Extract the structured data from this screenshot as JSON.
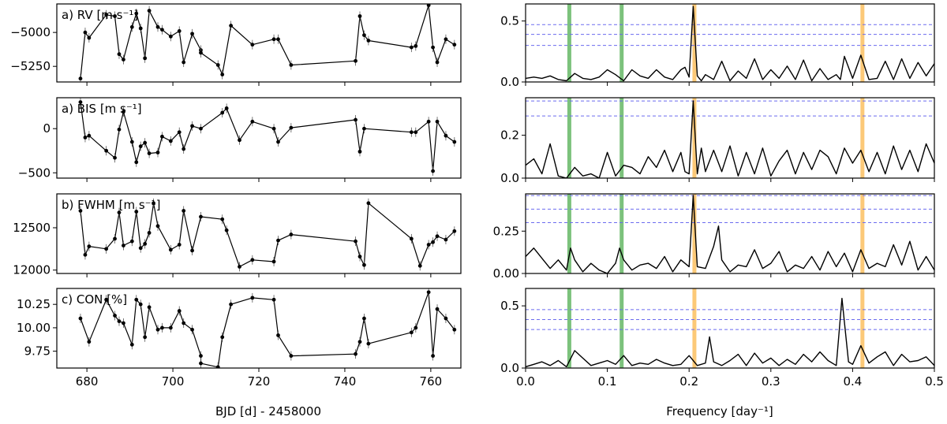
{
  "figure": {
    "left_xlabel": "BJD [d] - 2458000",
    "right_xlabel": "Frequency [day⁻¹]"
  },
  "chart_data": [
    {
      "type": "line",
      "panel": "left",
      "title": "a) RV [m s⁻¹]",
      "xlim": [
        673,
        767
      ],
      "ylim": [
        -5365,
        -4790
      ],
      "xticks": [
        680,
        700,
        720,
        740,
        760
      ],
      "yticks": [
        -5250,
        -5000
      ],
      "ytick_labels": [
        "−5250",
        "−5000"
      ],
      "x": [
        678.5,
        679.6,
        680.5,
        684.5,
        686.5,
        687.5,
        688.5,
        690.5,
        691.5,
        692.5,
        693.5,
        694.5,
        696.5,
        697.5,
        699.5,
        701.5,
        702.5,
        704.5,
        706.5,
        706.5,
        710.5,
        711.5,
        713.5,
        718.5,
        723.5,
        724.5,
        727.5,
        742.5,
        743.5,
        744.5,
        745.5,
        755.5,
        756.5,
        759.5,
        760.5,
        761.5,
        763.5,
        765.5
      ],
      "values": [
        -5340,
        -5000,
        -5040,
        -4870,
        -4880,
        -5160,
        -5200,
        -4960,
        -4860,
        -4970,
        -5190,
        -4840,
        -4960,
        -4980,
        -5030,
        -4990,
        -5220,
        -5010,
        -5130,
        -5150,
        -5240,
        -5310,
        -4950,
        -5090,
        -5050,
        -5050,
        -5240,
        -5210,
        -4880,
        -5020,
        -5060,
        -5110,
        -5100,
        -4800,
        -5110,
        -5220,
        -5050,
        -5090
      ]
    },
    {
      "type": "line",
      "panel": "left",
      "title": "a) BIS [m s⁻¹]",
      "xlim": [
        673,
        767
      ],
      "ylim": [
        -560,
        350
      ],
      "xticks": [
        680,
        700,
        720,
        740,
        760
      ],
      "yticks": [
        -500,
        0
      ],
      "ytick_labels": [
        "−500",
        "0"
      ],
      "x": [
        678.5,
        679.6,
        680.5,
        684.5,
        686.5,
        687.5,
        688.5,
        690.5,
        691.5,
        692.5,
        693.5,
        694.5,
        696.5,
        697.5,
        699.5,
        701.5,
        702.5,
        704.5,
        706.5,
        711.5,
        712.5,
        715.5,
        718.5,
        723.5,
        724.5,
        727.5,
        742.5,
        743.5,
        744.5,
        755.5,
        756.5,
        759.5,
        760.5,
        761.5,
        763.5,
        765.5
      ],
      "values": [
        300,
        -100,
        -80,
        -250,
        -330,
        -10,
        190,
        -150,
        -380,
        -200,
        -160,
        -280,
        -270,
        -90,
        -140,
        -40,
        -230,
        30,
        0,
        180,
        230,
        -130,
        80,
        0,
        -150,
        10,
        100,
        -260,
        0,
        -40,
        -40,
        80,
        -480,
        80,
        -80,
        -150
      ]
    },
    {
      "type": "line",
      "panel": "left",
      "title": "b) FWHM [m s⁻¹]",
      "xlim": [
        673,
        767
      ],
      "ylim": [
        11960,
        12900
      ],
      "xticks": [
        680,
        700,
        720,
        740,
        760
      ],
      "yticks": [
        12000,
        12500
      ],
      "ytick_labels": [
        "12000",
        "12500"
      ],
      "x": [
        678.5,
        679.6,
        680.5,
        684.5,
        686.5,
        687.5,
        688.5,
        690.5,
        691.5,
        692.5,
        693.5,
        694.5,
        695.5,
        696.5,
        699.5,
        701.5,
        702.5,
        704.5,
        706.5,
        711.5,
        712.5,
        715.5,
        718.5,
        723.5,
        724.5,
        727.5,
        742.5,
        743.5,
        744.5,
        745.5,
        755.5,
        757.5,
        759.5,
        760.5,
        761.5,
        763.5,
        765.5
      ],
      "values": [
        12700,
        12180,
        12280,
        12250,
        12370,
        12680,
        12290,
        12340,
        12690,
        12260,
        12310,
        12440,
        12790,
        12520,
        12240,
        12300,
        12700,
        12230,
        12630,
        12600,
        12470,
        12040,
        12120,
        12100,
        12350,
        12420,
        12340,
        12160,
        12060,
        12790,
        12370,
        12050,
        12300,
        12330,
        12400,
        12360,
        12460
      ]
    },
    {
      "type": "line",
      "panel": "left",
      "title": "c) CON [%]",
      "xlim": [
        673,
        767
      ],
      "ylim": [
        9.57,
        10.42
      ],
      "xticks": [
        680,
        700,
        720,
        740,
        760
      ],
      "yticks": [
        9.75,
        10.0,
        10.25
      ],
      "ytick_labels": [
        "9.75",
        "10.00",
        "10.25"
      ],
      "x": [
        678.5,
        680.5,
        684.5,
        686.5,
        687.5,
        688.5,
        690.5,
        691.5,
        692.5,
        693.5,
        694.5,
        696.5,
        697.5,
        699.5,
        701.5,
        702.5,
        704.5,
        706.5,
        706.5,
        710.5,
        711.5,
        713.5,
        718.5,
        723.5,
        724.5,
        727.5,
        742.5,
        743.5,
        744.5,
        745.5,
        755.5,
        756.5,
        759.5,
        760.5,
        761.5,
        763.5,
        765.5
      ],
      "values": [
        10.1,
        9.85,
        10.3,
        10.13,
        10.07,
        10.05,
        9.82,
        10.3,
        10.25,
        9.9,
        10.22,
        9.98,
        10.0,
        10.0,
        10.18,
        10.05,
        9.98,
        9.7,
        9.62,
        9.58,
        9.9,
        10.25,
        10.32,
        10.3,
        9.92,
        9.7,
        9.72,
        9.85,
        10.1,
        9.83,
        9.95,
        10.0,
        10.38,
        9.7,
        10.2,
        10.1,
        9.98
      ]
    },
    {
      "type": "line",
      "panel": "right",
      "xlim": [
        0,
        0.5
      ],
      "ylim": [
        0,
        0.64
      ],
      "xticks": [
        0.0,
        0.1,
        0.2,
        0.3,
        0.4,
        0.5
      ],
      "yticks": [
        0.0,
        0.5
      ],
      "ytick_labels": [
        "0.0",
        "0.5"
      ],
      "fap_levels": [
        0.3,
        0.39,
        0.47
      ],
      "freq_lines_green": [
        0.0535,
        0.1175
      ],
      "freq_lines_orange": [
        0.2065,
        0.412
      ],
      "x": [
        0.0,
        0.01,
        0.02,
        0.03,
        0.04,
        0.05,
        0.06,
        0.07,
        0.08,
        0.09,
        0.1,
        0.11,
        0.12,
        0.13,
        0.14,
        0.15,
        0.16,
        0.17,
        0.18,
        0.19,
        0.195,
        0.2,
        0.205,
        0.21,
        0.215,
        0.22,
        0.23,
        0.24,
        0.25,
        0.26,
        0.27,
        0.28,
        0.29,
        0.3,
        0.31,
        0.32,
        0.33,
        0.34,
        0.35,
        0.36,
        0.37,
        0.38,
        0.385,
        0.39,
        0.4,
        0.41,
        0.42,
        0.43,
        0.44,
        0.45,
        0.46,
        0.47,
        0.48,
        0.49,
        0.5
      ],
      "values": [
        0.03,
        0.04,
        0.03,
        0.05,
        0.02,
        0.01,
        0.07,
        0.03,
        0.02,
        0.04,
        0.1,
        0.06,
        0.01,
        0.1,
        0.05,
        0.03,
        0.1,
        0.04,
        0.02,
        0.1,
        0.12,
        0.04,
        0.62,
        0.05,
        0.01,
        0.06,
        0.02,
        0.17,
        0.01,
        0.09,
        0.03,
        0.19,
        0.02,
        0.1,
        0.03,
        0.13,
        0.02,
        0.18,
        0.01,
        0.11,
        0.02,
        0.06,
        0.02,
        0.21,
        0.03,
        0.22,
        0.02,
        0.03,
        0.17,
        0.02,
        0.19,
        0.03,
        0.16,
        0.05,
        0.15
      ]
    },
    {
      "type": "line",
      "panel": "right",
      "xlim": [
        0,
        0.5
      ],
      "ylim": [
        0,
        0.375
      ],
      "xticks": [
        0.0,
        0.1,
        0.2,
        0.3,
        0.4,
        0.5
      ],
      "yticks": [
        0.0,
        0.2
      ],
      "ytick_labels": [
        "0.0",
        "0.2"
      ],
      "fap_levels": [
        0.29,
        0.36
      ],
      "freq_lines_green": [
        0.0535,
        0.1175
      ],
      "freq_lines_orange": [
        0.2065,
        0.412
      ],
      "x": [
        0.0,
        0.01,
        0.02,
        0.03,
        0.04,
        0.05,
        0.06,
        0.07,
        0.08,
        0.09,
        0.1,
        0.11,
        0.12,
        0.13,
        0.14,
        0.15,
        0.16,
        0.17,
        0.18,
        0.19,
        0.195,
        0.2,
        0.205,
        0.21,
        0.215,
        0.22,
        0.23,
        0.24,
        0.25,
        0.26,
        0.27,
        0.28,
        0.29,
        0.3,
        0.31,
        0.32,
        0.33,
        0.34,
        0.35,
        0.36,
        0.37,
        0.38,
        0.39,
        0.4,
        0.41,
        0.42,
        0.43,
        0.44,
        0.45,
        0.46,
        0.47,
        0.48,
        0.49,
        0.5
      ],
      "values": [
        0.06,
        0.09,
        0.02,
        0.16,
        0.01,
        0.0,
        0.05,
        0.01,
        0.02,
        0.0,
        0.12,
        0.01,
        0.06,
        0.05,
        0.02,
        0.1,
        0.05,
        0.13,
        0.03,
        0.12,
        0.03,
        0.02,
        0.36,
        0.02,
        0.14,
        0.03,
        0.13,
        0.03,
        0.15,
        0.01,
        0.12,
        0.02,
        0.14,
        0.01,
        0.08,
        0.13,
        0.02,
        0.12,
        0.04,
        0.13,
        0.1,
        0.02,
        0.14,
        0.07,
        0.13,
        0.03,
        0.12,
        0.02,
        0.15,
        0.04,
        0.13,
        0.03,
        0.16,
        0.07
      ]
    },
    {
      "type": "line",
      "panel": "right",
      "xlim": [
        0,
        0.5
      ],
      "ylim": [
        0,
        0.47
      ],
      "xticks": [
        0.0,
        0.1,
        0.2,
        0.3,
        0.4,
        0.5
      ],
      "yticks": [
        0.0,
        0.25
      ],
      "ytick_labels": [
        "0.00",
        "0.25"
      ],
      "fap_levels": [
        0.3,
        0.38,
        0.46
      ],
      "freq_lines_green": [
        0.0535,
        0.1175
      ],
      "freq_lines_orange": [
        0.2065,
        0.412
      ],
      "x": [
        0.0,
        0.01,
        0.02,
        0.03,
        0.04,
        0.05,
        0.055,
        0.06,
        0.07,
        0.08,
        0.09,
        0.1,
        0.11,
        0.115,
        0.12,
        0.13,
        0.14,
        0.15,
        0.16,
        0.17,
        0.18,
        0.19,
        0.2,
        0.205,
        0.21,
        0.22,
        0.23,
        0.236,
        0.24,
        0.25,
        0.26,
        0.27,
        0.28,
        0.29,
        0.3,
        0.31,
        0.32,
        0.33,
        0.34,
        0.35,
        0.36,
        0.37,
        0.38,
        0.39,
        0.4,
        0.41,
        0.42,
        0.43,
        0.44,
        0.45,
        0.46,
        0.47,
        0.48,
        0.49,
        0.5
      ],
      "values": [
        0.1,
        0.15,
        0.09,
        0.03,
        0.08,
        0.02,
        0.15,
        0.08,
        0.01,
        0.06,
        0.02,
        0.0,
        0.06,
        0.15,
        0.08,
        0.02,
        0.05,
        0.06,
        0.03,
        0.1,
        0.01,
        0.08,
        0.04,
        0.46,
        0.04,
        0.03,
        0.16,
        0.28,
        0.08,
        0.01,
        0.05,
        0.04,
        0.14,
        0.03,
        0.06,
        0.13,
        0.01,
        0.05,
        0.03,
        0.1,
        0.02,
        0.13,
        0.04,
        0.12,
        0.01,
        0.14,
        0.03,
        0.06,
        0.04,
        0.17,
        0.05,
        0.19,
        0.02,
        0.1,
        0.02
      ]
    },
    {
      "type": "line",
      "panel": "right",
      "xlim": [
        0,
        0.5
      ],
      "ylim": [
        0,
        0.64
      ],
      "xticks": [
        0.0,
        0.1,
        0.2,
        0.3,
        0.4,
        0.5
      ],
      "yticks": [
        0.0,
        0.5
      ],
      "ytick_labels": [
        "0.0",
        "0.5"
      ],
      "fap_levels": [
        0.31,
        0.39,
        0.47
      ],
      "freq_lines_green": [
        0.0535,
        0.1175
      ],
      "freq_lines_orange": [
        0.2065,
        0.412
      ],
      "x": [
        0.0,
        0.01,
        0.02,
        0.03,
        0.04,
        0.05,
        0.06,
        0.07,
        0.08,
        0.09,
        0.1,
        0.11,
        0.12,
        0.13,
        0.14,
        0.15,
        0.16,
        0.17,
        0.18,
        0.19,
        0.2,
        0.21,
        0.22,
        0.225,
        0.23,
        0.24,
        0.25,
        0.26,
        0.27,
        0.28,
        0.29,
        0.3,
        0.31,
        0.32,
        0.33,
        0.34,
        0.35,
        0.36,
        0.37,
        0.38,
        0.387,
        0.395,
        0.4,
        0.41,
        0.42,
        0.43,
        0.44,
        0.45,
        0.46,
        0.47,
        0.48,
        0.49,
        0.5
      ],
      "values": [
        0.01,
        0.03,
        0.05,
        0.02,
        0.06,
        0.01,
        0.14,
        0.08,
        0.02,
        0.04,
        0.06,
        0.03,
        0.1,
        0.02,
        0.04,
        0.03,
        0.07,
        0.04,
        0.02,
        0.03,
        0.1,
        0.02,
        0.04,
        0.25,
        0.05,
        0.02,
        0.06,
        0.11,
        0.02,
        0.12,
        0.04,
        0.08,
        0.02,
        0.07,
        0.03,
        0.11,
        0.05,
        0.13,
        0.06,
        0.02,
        0.56,
        0.05,
        0.03,
        0.18,
        0.04,
        0.09,
        0.13,
        0.02,
        0.11,
        0.05,
        0.06,
        0.09,
        0.02
      ]
    }
  ]
}
